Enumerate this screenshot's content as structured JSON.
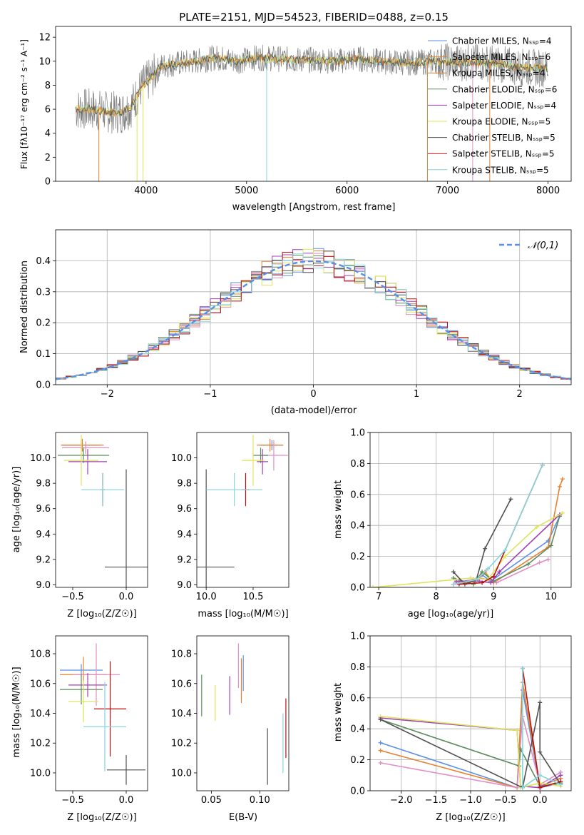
{
  "title": "PLATE=2151, MJD=54523, FIBERID=0488, z=0.15",
  "colors": [
    "#5b8ee6",
    "#e8812f",
    "#e08fc6",
    "#5e8b5e",
    "#a040b8",
    "#dde45a",
    "#505050",
    "#b80f0f",
    "#86d6dc"
  ],
  "labels": {
    "flux_ylabel": "Flux [fλ10⁻¹⁷ erg cm⁻² s⁻¹ A⁻¹]",
    "flux_xlabel": "wavelength [Angstrom, rest frame]",
    "hist_ylabel": "Normed distribution",
    "hist_xlabel": "(data-model)/error",
    "age_label": "age  [log₁₀(age/yr)]",
    "z_label": "Z [log₁₀(Z/Z☉)]",
    "mass_label": "mass [log₁₀(M/M☉)]",
    "mass_weight": "mass weight",
    "ebv": "E(B-V)"
  },
  "chart_data": [
    {
      "type": "line",
      "title": "PLATE=2151, MJD=54523, FIBERID=0488, z=0.15",
      "xlabel": "wavelength [Angstrom, rest frame]",
      "ylabel": "Flux [fλ10⁻¹⁷ erg cm⁻² s⁻¹ A⁻¹]",
      "xlim": [
        3100,
        8230
      ],
      "ylim": [
        0,
        12.9
      ],
      "xticks": [
        4000,
        5000,
        6000,
        7000,
        8000
      ],
      "yticks": [
        0,
        2,
        4,
        6,
        8,
        10,
        12
      ],
      "legend_position": "upper right",
      "legend": [
        "Chabrier MILES, Nₛₛₚ=4",
        "Salpeter MILES, Nₛₛₚ=6",
        "Kroupa MILES, Nₛₛₚ=4",
        "Chabrier ELODIE, Nₛₛₚ=6",
        "Salpeter ELODIE, Nₛₛₚ=4",
        "Kroupa ELODIE, Nₛₛₚ=5",
        "Chabrier STELIB, Nₛₛₚ=5",
        "Salpeter STELIB, Nₛₛₚ=5",
        "Kroupa STELIB, Nₛₛₚ=5"
      ],
      "legend_colors": [
        "#5b8ee6",
        "#e8812f",
        "#e8812f",
        "#5e8b5e",
        "#a040b8",
        "#dde45a",
        "#505050",
        "#b80f0f",
        "#86d6dc"
      ],
      "continuum": [
        [
          3300,
          6.0
        ],
        [
          3450,
          6.0
        ],
        [
          3600,
          5.8
        ],
        [
          3750,
          5.7
        ],
        [
          3850,
          6.2
        ],
        [
          3950,
          7.8
        ],
        [
          4050,
          8.6
        ],
        [
          4150,
          9.6
        ],
        [
          4300,
          9.8
        ],
        [
          4500,
          10.0
        ],
        [
          4700,
          10.3
        ],
        [
          4900,
          10.0
        ],
        [
          5100,
          10.3
        ],
        [
          5300,
          10.2
        ],
        [
          5500,
          10.1
        ],
        [
          5700,
          10.1
        ],
        [
          5900,
          10.0
        ],
        [
          6100,
          10.2
        ],
        [
          6300,
          10.0
        ],
        [
          6500,
          9.9
        ],
        [
          6700,
          9.9
        ],
        [
          6900,
          10.0
        ],
        [
          7100,
          9.9
        ],
        [
          7300,
          9.9
        ],
        [
          7500,
          9.8
        ],
        [
          7700,
          9.5
        ],
        [
          8000,
          9.4
        ]
      ],
      "spikes": [
        3530,
        3910,
        3970,
        5200,
        6800,
        7250,
        7420
      ]
    },
    {
      "type": "bar",
      "xlabel": "(data-model)/error",
      "ylabel": "Normed distribution",
      "xlim": [
        -2.5,
        2.5
      ],
      "ylim": [
        0,
        0.5
      ],
      "xticks": [
        -2,
        -1,
        0,
        1,
        2
      ],
      "yticks": [
        0.0,
        0.1,
        0.2,
        0.3,
        0.4
      ],
      "bin_width": 0.1,
      "legend": [
        "𝒩(0,1)"
      ],
      "legend_position": "upper right",
      "grid": true
    },
    {
      "type": "scatter",
      "xlabel": "Z [log₁₀(Z/Z☉)]",
      "ylabel": "age  [log₁₀(age/yr)]",
      "xlim": [
        -0.66,
        0.2
      ],
      "ylim": [
        8.98,
        10.2
      ],
      "xticks": [
        -0.5,
        0.0
      ],
      "yticks": [
        9.0,
        9.2,
        9.4,
        9.6,
        9.8,
        10.0
      ],
      "points": [
        {
          "x": -0.42,
          "y": 10.1,
          "xerr": 0.18,
          "yerr": 0.04,
          "c": 0
        },
        {
          "x": -0.41,
          "y": 10.1,
          "xerr": 0.2,
          "yerr": 0.05,
          "c": 1
        },
        {
          "x": -0.38,
          "y": 10.08,
          "xerr": 0.22,
          "yerr": 0.05,
          "c": 2
        },
        {
          "x": -0.4,
          "y": 10.02,
          "xerr": 0.24,
          "yerr": 0.06,
          "c": 3
        },
        {
          "x": -0.36,
          "y": 9.97,
          "xerr": 0.18,
          "yerr": 0.1,
          "c": 4
        },
        {
          "x": -0.42,
          "y": 9.98,
          "xerr": 0.16,
          "yerr": 0.2,
          "c": 5
        },
        {
          "x": 0.0,
          "y": 9.14,
          "xerr": 0.2,
          "yerr": 0.77,
          "c": 6
        },
        {
          "x": -0.22,
          "y": 9.75,
          "xerr": 0.02,
          "yerr": 0.13,
          "c": 7
        },
        {
          "x": -0.22,
          "y": 9.75,
          "xerr": 0.2,
          "yerr": 0.13,
          "c": 8
        }
      ]
    },
    {
      "type": "scatter",
      "xlabel": "mass [log₁₀(M/M☉)]",
      "ylabel": "",
      "xlim": [
        9.9,
        10.88
      ],
      "ylim": [
        8.98,
        10.2
      ],
      "xticks": [
        10.0,
        10.5
      ],
      "yticks": [
        9.0,
        9.2,
        9.4,
        9.6,
        9.8,
        10.0
      ],
      "points": [
        {
          "x": 10.7,
          "y": 10.1,
          "xerr": 0.12,
          "yerr": 0.04,
          "c": 0
        },
        {
          "x": 10.68,
          "y": 10.1,
          "xerr": 0.14,
          "yerr": 0.05,
          "c": 1
        },
        {
          "x": 10.72,
          "y": 10.02,
          "xerr": 0.15,
          "yerr": 0.12,
          "c": 2
        },
        {
          "x": 10.58,
          "y": 10.02,
          "xerr": 0.08,
          "yerr": 0.06,
          "c": 3
        },
        {
          "x": 10.6,
          "y": 9.97,
          "xerr": 0.06,
          "yerr": 0.1,
          "c": 4
        },
        {
          "x": 10.5,
          "y": 9.98,
          "xerr": 0.12,
          "yerr": 0.2,
          "c": 5
        },
        {
          "x": 10.0,
          "y": 9.14,
          "xerr": 0.3,
          "yerr": 0.77,
          "c": 6
        },
        {
          "x": 10.42,
          "y": 9.75,
          "xerr": 0.04,
          "yerr": 0.13,
          "c": 7
        },
        {
          "x": 10.3,
          "y": 9.75,
          "xerr": 0.3,
          "yerr": 0.13,
          "c": 8
        }
      ]
    },
    {
      "type": "line",
      "xlabel": "age  [log₁₀(age/yr)]",
      "ylabel": "mass weight",
      "xlim": [
        6.85,
        10.35
      ],
      "ylim": [
        0,
        1
      ],
      "xticks": [
        7,
        8,
        9,
        10
      ],
      "yticks": [
        0.0,
        0.2,
        0.4,
        0.6,
        0.8,
        1.0
      ],
      "grid": true,
      "series": [
        {
          "c": 0,
          "x": [
            8.3,
            8.65,
            8.8,
            8.95,
            9.95,
            10.15
          ],
          "y": [
            0.02,
            0.05,
            0.08,
            0.04,
            0.3,
            0.46
          ]
        },
        {
          "c": 1,
          "x": [
            8.3,
            8.7,
            8.85,
            9.0,
            9.95,
            10.15,
            10.2
          ],
          "y": [
            0.02,
            0.04,
            0.1,
            0.03,
            0.26,
            0.65,
            0.7
          ]
        },
        {
          "c": 2,
          "x": [
            8.35,
            8.75,
            8.9,
            9.05,
            9.8,
            9.95
          ],
          "y": [
            0.03,
            0.06,
            0.05,
            0.03,
            0.16,
            0.18
          ]
        },
        {
          "c": 3,
          "x": [
            8.3,
            8.65,
            8.8,
            9.0,
            9.6,
            10.0,
            10.15
          ],
          "y": [
            0.06,
            0.02,
            0.1,
            0.04,
            0.15,
            0.27,
            0.46
          ]
        },
        {
          "c": 4,
          "x": [
            8.35,
            8.75,
            8.95,
            9.1,
            10.15
          ],
          "y": [
            0.04,
            0.04,
            0.03,
            0.1,
            0.47
          ]
        },
        {
          "c": 5,
          "x": [
            6.9,
            8.6,
            8.9,
            9.2,
            9.75,
            10.2
          ],
          "y": [
            0.0,
            0.06,
            0.05,
            0.2,
            0.39,
            0.48
          ]
        },
        {
          "c": 6,
          "x": [
            8.3,
            8.5,
            8.7,
            8.85,
            9.3
          ],
          "y": [
            0.1,
            0.02,
            0.05,
            0.25,
            0.57
          ]
        },
        {
          "c": 7,
          "x": [
            8.4,
            8.8,
            9.0,
            9.85
          ],
          "y": [
            0.02,
            0.03,
            0.07,
            0.79
          ]
        },
        {
          "c": 8,
          "x": [
            8.3,
            8.7,
            8.9,
            9.2,
            9.85
          ],
          "y": [
            0.02,
            0.05,
            0.12,
            0.24,
            0.79
          ]
        }
      ]
    },
    {
      "type": "scatter",
      "xlabel": "Z [log₁₀(Z/Z☉)]",
      "ylabel": "mass [log₁₀(M/M☉)]",
      "xlim": [
        -0.66,
        0.2
      ],
      "ylim": [
        9.88,
        10.92
      ],
      "xticks": [
        -0.5,
        0.0
      ],
      "yticks": [
        10.0,
        10.2,
        10.4,
        10.6,
        10.8
      ],
      "points": [
        {
          "x": -0.42,
          "y": 10.69,
          "xerr": 0.2,
          "yerr": 0.04,
          "c": 0
        },
        {
          "x": -0.4,
          "y": 10.66,
          "xerr": 0.22,
          "yerr": 0.12,
          "c": 1
        },
        {
          "x": -0.28,
          "y": 10.66,
          "xerr": 0.22,
          "yerr": 0.21,
          "c": 2
        },
        {
          "x": -0.42,
          "y": 10.56,
          "xerr": 0.2,
          "yerr": 0.1,
          "c": 3
        },
        {
          "x": -0.36,
          "y": 10.59,
          "xerr": 0.18,
          "yerr": 0.08,
          "c": 4
        },
        {
          "x": -0.4,
          "y": 10.48,
          "xerr": 0.14,
          "yerr": 0.14,
          "c": 5
        },
        {
          "x": 0.0,
          "y": 10.02,
          "xerr": 0.18,
          "yerr": 0.1,
          "c": 6
        },
        {
          "x": -0.15,
          "y": 10.43,
          "xerr": 0.15,
          "yerr": 0.32,
          "c": 7
        },
        {
          "x": -0.2,
          "y": 10.31,
          "xerr": 0.2,
          "yerr": 0.3,
          "c": 8
        }
      ]
    },
    {
      "type": "scatter",
      "xlabel": "E(B-V)",
      "ylabel": "",
      "xlim": [
        0.035,
        0.13
      ],
      "ylim": [
        9.88,
        10.92
      ],
      "xticks": [
        0.05,
        0.1
      ],
      "yticks": [
        10.0,
        10.2,
        10.4,
        10.6,
        10.8
      ],
      "points": [
        {
          "x": 0.083,
          "y": 10.67,
          "yerr": 0.12,
          "c": 0
        },
        {
          "x": 0.081,
          "y": 10.62,
          "yerr": 0.15,
          "c": 1
        },
        {
          "x": 0.078,
          "y": 10.72,
          "yerr": 0.15,
          "c": 2
        },
        {
          "x": 0.04,
          "y": 10.52,
          "yerr": 0.14,
          "c": 3
        },
        {
          "x": 0.069,
          "y": 10.52,
          "yerr": 0.13,
          "c": 4
        },
        {
          "x": 0.054,
          "y": 10.47,
          "yerr": 0.12,
          "c": 5
        },
        {
          "x": 0.108,
          "y": 10.11,
          "yerr": 0.19,
          "c": 6
        },
        {
          "x": 0.127,
          "y": 10.3,
          "yerr": 0.2,
          "c": 7
        },
        {
          "x": 0.124,
          "y": 10.2,
          "yerr": 0.2,
          "c": 8
        }
      ]
    },
    {
      "type": "line",
      "xlabel": "Z [log₁₀(Z/Z☉)]",
      "ylabel": "mass weight",
      "xlim": [
        -2.45,
        0.45
      ],
      "ylim": [
        0,
        1
      ],
      "xticks": [
        -2.0,
        -1.5,
        -1.0,
        -0.5,
        0.0
      ],
      "yticks": [
        0.0,
        0.2,
        0.4,
        0.6,
        0.8,
        1.0
      ],
      "grid": true,
      "series": [
        {
          "c": 0,
          "x": [
            -2.3,
            -0.33,
            -0.25,
            0.0,
            0.3
          ],
          "y": [
            0.31,
            0.02,
            0.65,
            0.02,
            0.05
          ]
        },
        {
          "c": 1,
          "x": [
            -2.3,
            -0.33,
            -0.25,
            0.0,
            0.3
          ],
          "y": [
            0.26,
            0.02,
            0.7,
            0.03,
            0.08
          ]
        },
        {
          "c": 2,
          "x": [
            -2.3,
            -0.33,
            -0.25,
            0.0,
            0.3
          ],
          "y": [
            0.18,
            0.02,
            0.48,
            0.04,
            0.12
          ]
        },
        {
          "c": 3,
          "x": [
            -2.3,
            -0.3,
            -0.28,
            0.0,
            0.3
          ],
          "y": [
            0.46,
            0.16,
            0.27,
            0.03,
            0.05
          ]
        },
        {
          "c": 4,
          "x": [
            -2.3,
            -0.33,
            -0.28,
            0.0,
            0.3
          ],
          "y": [
            0.47,
            0.39,
            0.03,
            0.02,
            0.1
          ]
        },
        {
          "c": 5,
          "x": [
            -2.3,
            -0.33,
            -0.28,
            0.0,
            0.3
          ],
          "y": [
            0.48,
            0.39,
            0.02,
            0.05,
            0.03
          ]
        },
        {
          "c": 6,
          "x": [
            -2.3,
            -0.25,
            0.0,
            0.0,
            0.3
          ],
          "y": [
            0.46,
            0.02,
            0.57,
            0.25,
            0.04
          ]
        },
        {
          "c": 7,
          "x": [
            -0.25,
            0.0,
            0.3
          ],
          "y": [
            0.79,
            0.02,
            0.06
          ]
        },
        {
          "c": 8,
          "x": [
            -0.25,
            -0.25,
            0.0,
            0.3
          ],
          "y": [
            0.79,
            0.02,
            0.1,
            0.04
          ]
        }
      ]
    }
  ]
}
